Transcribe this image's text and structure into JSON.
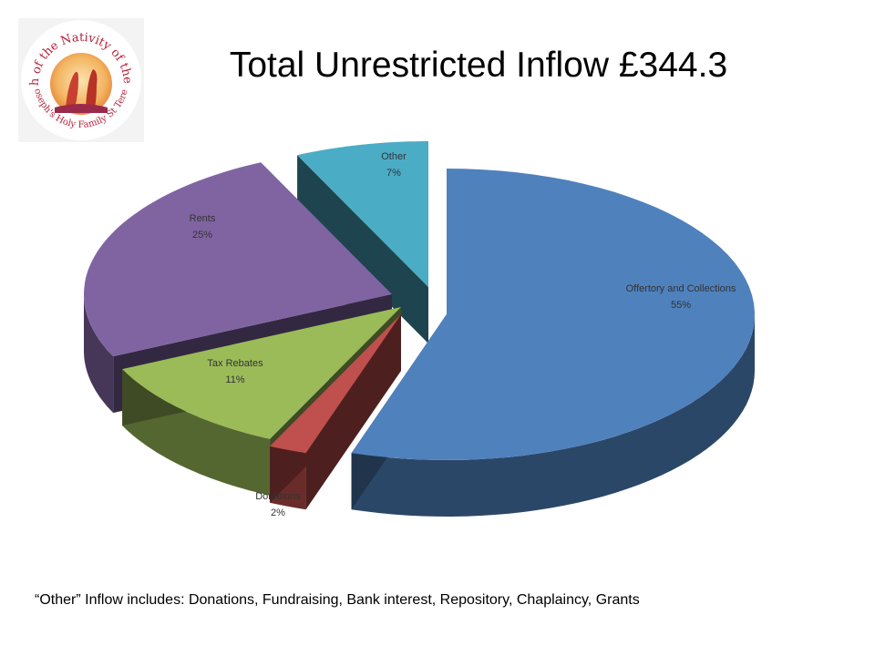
{
  "title": "Total Unrestricted Inflow £344.3",
  "footnote": "“Other” Inflow includes: Donations, Fundraising, Bank interest, Repository, Chaplaincy, Grants",
  "logo": {
    "text_top": "Parish of the Nativity of the Lord",
    "text_bottom": "St Joseph's Holy Family St Teresa's"
  },
  "chart_data": {
    "type": "pie",
    "style": "3d-exploded",
    "categories": [
      "Offertory and Collections",
      "Donations",
      "Tax Rebates",
      "Rents",
      "Other"
    ],
    "values": [
      55,
      2,
      11,
      25,
      7
    ],
    "unit": "%",
    "colors": [
      "#4F81BD",
      "#C0504D",
      "#9BBB59",
      "#8064A2",
      "#4BACC6"
    ],
    "data_labels": [
      {
        "name": "Offertory and Collections",
        "pct": "55%"
      },
      {
        "name": "Donations",
        "pct": "2%"
      },
      {
        "name": "Tax Rebates",
        "pct": "11%"
      },
      {
        "name": "Rents",
        "pct": "25%"
      },
      {
        "name": "Other",
        "pct": "7%"
      }
    ]
  }
}
